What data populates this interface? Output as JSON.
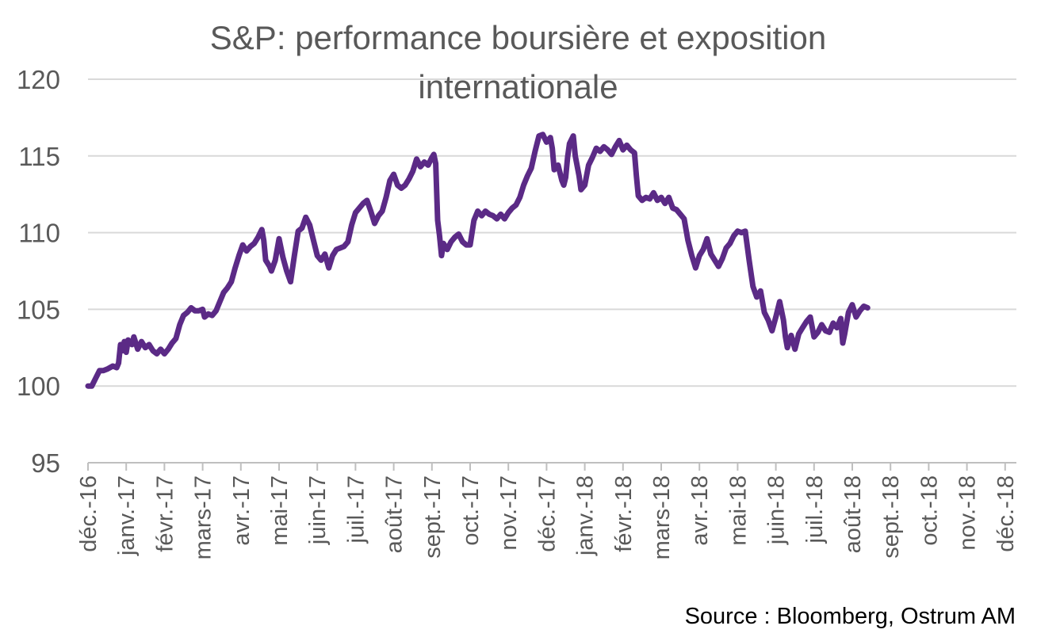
{
  "chart_data": {
    "type": "line",
    "title_lines": [
      "S&P: performance boursière et exposition",
      "internationale"
    ],
    "source": "Source : Bloomberg, Ostrum AM",
    "ylim": [
      95,
      120
    ],
    "y_ticks": [
      "95",
      "100",
      "105",
      "110",
      "115",
      "120"
    ],
    "grid": true,
    "legend": "none",
    "x_tick_labels": [
      "déc.-16",
      "janv.-17",
      "févr.-17",
      "mars-17",
      "avr.-17",
      "mai-17",
      "juin-17",
      "juil.-17",
      "août-17",
      "sept.-17",
      "oct.-17",
      "nov.-17",
      "déc.-17",
      "janv.-18",
      "févr.-18",
      "mars-18",
      "avr.-18",
      "mai-18",
      "juin-18",
      "juil.-18",
      "août-18",
      "sept.-18",
      "oct.-18",
      "nov.-18",
      "déc.-18"
    ],
    "series": [
      {
        "color": "#5b2a86",
        "points": [
          [
            0.0,
            100.0
          ],
          [
            0.1,
            100.0
          ],
          [
            0.2,
            100.5
          ],
          [
            0.3,
            101.0
          ],
          [
            0.4,
            101.0
          ],
          [
            0.5,
            101.1
          ],
          [
            0.65,
            101.3
          ],
          [
            0.75,
            101.2
          ],
          [
            0.8,
            101.5
          ],
          [
            0.85,
            102.7
          ],
          [
            0.9,
            102.3
          ],
          [
            0.95,
            102.9
          ],
          [
            1.0,
            102.2
          ],
          [
            1.05,
            103.0
          ],
          [
            1.15,
            102.7
          ],
          [
            1.2,
            103.2
          ],
          [
            1.3,
            102.4
          ],
          [
            1.4,
            102.9
          ],
          [
            1.5,
            102.5
          ],
          [
            1.6,
            102.7
          ],
          [
            1.7,
            102.3
          ],
          [
            1.8,
            102.1
          ],
          [
            1.9,
            102.4
          ],
          [
            2.0,
            102.1
          ],
          [
            2.1,
            102.4
          ],
          [
            2.2,
            102.8
          ],
          [
            2.3,
            103.1
          ],
          [
            2.4,
            104.0
          ],
          [
            2.5,
            104.6
          ],
          [
            2.6,
            104.8
          ],
          [
            2.7,
            105.1
          ],
          [
            2.8,
            104.9
          ],
          [
            2.9,
            104.9
          ],
          [
            3.0,
            105.0
          ],
          [
            3.05,
            104.5
          ],
          [
            3.15,
            104.7
          ],
          [
            3.25,
            104.6
          ],
          [
            3.35,
            104.9
          ],
          [
            3.45,
            105.5
          ],
          [
            3.55,
            106.1
          ],
          [
            3.65,
            106.4
          ],
          [
            3.75,
            106.8
          ],
          [
            3.85,
            107.7
          ],
          [
            3.95,
            108.5
          ],
          [
            4.05,
            109.2
          ],
          [
            4.15,
            108.8
          ],
          [
            4.25,
            109.1
          ],
          [
            4.35,
            109.3
          ],
          [
            4.45,
            109.7
          ],
          [
            4.55,
            110.2
          ],
          [
            4.6,
            109.5
          ],
          [
            4.65,
            108.2
          ],
          [
            4.75,
            107.8
          ],
          [
            4.8,
            107.5
          ],
          [
            4.9,
            108.2
          ],
          [
            5.0,
            109.6
          ],
          [
            5.1,
            108.4
          ],
          [
            5.2,
            107.5
          ],
          [
            5.3,
            106.8
          ],
          [
            5.4,
            108.5
          ],
          [
            5.5,
            110.1
          ],
          [
            5.6,
            110.3
          ],
          [
            5.7,
            111.0
          ],
          [
            5.8,
            110.5
          ],
          [
            5.9,
            109.5
          ],
          [
            6.0,
            108.5
          ],
          [
            6.1,
            108.2
          ],
          [
            6.2,
            108.6
          ],
          [
            6.3,
            107.7
          ],
          [
            6.4,
            108.5
          ],
          [
            6.5,
            108.9
          ],
          [
            6.6,
            109.0
          ],
          [
            6.7,
            109.1
          ],
          [
            6.8,
            109.4
          ],
          [
            6.9,
            110.5
          ],
          [
            7.0,
            111.3
          ],
          [
            7.1,
            111.6
          ],
          [
            7.2,
            111.9
          ],
          [
            7.3,
            112.1
          ],
          [
            7.4,
            111.4
          ],
          [
            7.5,
            110.6
          ],
          [
            7.6,
            111.1
          ],
          [
            7.7,
            111.4
          ],
          [
            7.8,
            112.3
          ],
          [
            7.9,
            113.4
          ],
          [
            8.0,
            113.8
          ],
          [
            8.1,
            113.1
          ],
          [
            8.2,
            112.9
          ],
          [
            8.3,
            113.1
          ],
          [
            8.4,
            113.5
          ],
          [
            8.5,
            114.0
          ],
          [
            8.6,
            114.8
          ],
          [
            8.7,
            114.3
          ],
          [
            8.8,
            114.6
          ],
          [
            8.9,
            114.4
          ],
          [
            9.0,
            114.9
          ],
          [
            9.05,
            115.1
          ],
          [
            9.1,
            114.5
          ],
          [
            9.15,
            110.8
          ],
          [
            9.2,
            109.8
          ],
          [
            9.25,
            108.5
          ],
          [
            9.3,
            109.3
          ],
          [
            9.4,
            108.9
          ],
          [
            9.5,
            109.4
          ],
          [
            9.6,
            109.7
          ],
          [
            9.7,
            109.9
          ],
          [
            9.8,
            109.4
          ],
          [
            9.9,
            109.2
          ],
          [
            10.0,
            109.2
          ],
          [
            10.1,
            110.8
          ],
          [
            10.2,
            111.4
          ],
          [
            10.3,
            111.1
          ],
          [
            10.4,
            111.4
          ],
          [
            10.5,
            111.2
          ],
          [
            10.6,
            111.1
          ],
          [
            10.7,
            110.9
          ],
          [
            10.8,
            111.2
          ],
          [
            10.9,
            110.9
          ],
          [
            11.0,
            111.3
          ],
          [
            11.1,
            111.6
          ],
          [
            11.2,
            111.8
          ],
          [
            11.3,
            112.3
          ],
          [
            11.4,
            113.1
          ],
          [
            11.5,
            113.7
          ],
          [
            11.6,
            114.2
          ],
          [
            11.7,
            115.3
          ],
          [
            11.8,
            116.3
          ],
          [
            11.9,
            116.4
          ],
          [
            12.0,
            115.9
          ],
          [
            12.1,
            116.2
          ],
          [
            12.15,
            115.5
          ],
          [
            12.2,
            114.1
          ],
          [
            12.3,
            114.4
          ],
          [
            12.4,
            113.4
          ],
          [
            12.45,
            113.1
          ],
          [
            12.5,
            113.6
          ],
          [
            12.55,
            114.9
          ],
          [
            12.6,
            115.8
          ],
          [
            12.7,
            116.3
          ],
          [
            12.75,
            115.0
          ],
          [
            12.85,
            113.7
          ],
          [
            12.9,
            112.8
          ],
          [
            13.0,
            113.1
          ],
          [
            13.1,
            114.4
          ],
          [
            13.2,
            114.9
          ],
          [
            13.3,
            115.5
          ],
          [
            13.4,
            115.3
          ],
          [
            13.5,
            115.6
          ],
          [
            13.6,
            115.4
          ],
          [
            13.7,
            115.1
          ],
          [
            13.8,
            115.6
          ],
          [
            13.9,
            116.0
          ],
          [
            14.0,
            115.4
          ],
          [
            14.1,
            115.7
          ],
          [
            14.2,
            115.4
          ],
          [
            14.3,
            115.2
          ],
          [
            14.35,
            113.7
          ],
          [
            14.4,
            112.4
          ],
          [
            14.5,
            112.1
          ],
          [
            14.6,
            112.3
          ],
          [
            14.7,
            112.2
          ],
          [
            14.8,
            112.6
          ],
          [
            14.9,
            112.1
          ],
          [
            15.0,
            112.3
          ],
          [
            15.1,
            111.9
          ],
          [
            15.2,
            112.3
          ],
          [
            15.3,
            111.6
          ],
          [
            15.4,
            111.5
          ],
          [
            15.5,
            111.2
          ],
          [
            15.6,
            110.9
          ],
          [
            15.7,
            109.5
          ],
          [
            15.8,
            108.5
          ],
          [
            15.9,
            107.7
          ],
          [
            16.0,
            108.5
          ],
          [
            16.1,
            108.9
          ],
          [
            16.2,
            109.6
          ],
          [
            16.3,
            108.6
          ],
          [
            16.4,
            108.2
          ],
          [
            16.5,
            107.8
          ],
          [
            16.6,
            108.3
          ],
          [
            16.7,
            109.0
          ],
          [
            16.8,
            109.3
          ],
          [
            16.9,
            109.8
          ],
          [
            17.0,
            110.1
          ],
          [
            17.1,
            110.0
          ],
          [
            17.2,
            110.1
          ],
          [
            17.3,
            108.2
          ],
          [
            17.4,
            106.5
          ],
          [
            17.5,
            105.8
          ],
          [
            17.6,
            106.2
          ],
          [
            17.7,
            104.8
          ],
          [
            17.8,
            104.3
          ],
          [
            17.9,
            103.6
          ],
          [
            18.0,
            104.5
          ],
          [
            18.1,
            105.5
          ],
          [
            18.2,
            104.3
          ],
          [
            18.25,
            103.2
          ],
          [
            18.3,
            102.5
          ],
          [
            18.4,
            103.3
          ],
          [
            18.5,
            102.4
          ],
          [
            18.6,
            103.4
          ],
          [
            18.7,
            103.8
          ],
          [
            18.8,
            104.2
          ],
          [
            18.9,
            104.5
          ],
          [
            19.0,
            103.2
          ],
          [
            19.1,
            103.5
          ],
          [
            19.2,
            104.0
          ],
          [
            19.3,
            103.6
          ],
          [
            19.4,
            103.5
          ],
          [
            19.5,
            104.1
          ],
          [
            19.6,
            103.8
          ],
          [
            19.7,
            104.4
          ],
          [
            19.75,
            102.8
          ],
          [
            19.8,
            103.4
          ],
          [
            19.9,
            104.8
          ],
          [
            20.0,
            105.3
          ],
          [
            20.1,
            104.5
          ],
          [
            20.2,
            104.9
          ],
          [
            20.3,
            105.2
          ],
          [
            20.4,
            105.1
          ]
        ]
      }
    ]
  }
}
